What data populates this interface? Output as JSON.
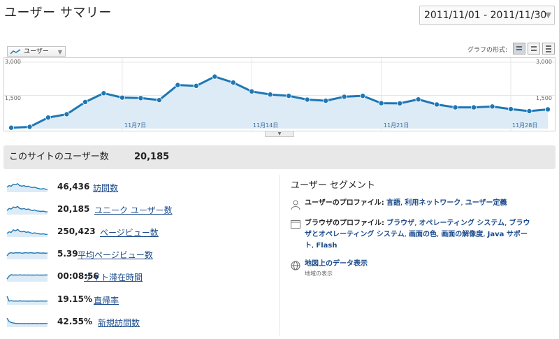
{
  "page": {
    "title": "ユーザー サマリー",
    "date_range": "2011/11/01 - 2011/11/30"
  },
  "graph": {
    "metric_select_label": "ユーザー",
    "format_label": "グラフの形式:",
    "format_buttons": [
      "line-chart-icon",
      "motion-chart-icon",
      "table-icon"
    ],
    "y_left": [
      "3,000",
      "1,500"
    ],
    "y_right": [
      "3,000",
      "1,500"
    ],
    "x_labels": [
      "11月7日",
      "11月14日",
      "11月21日",
      "11月28日"
    ]
  },
  "chart_data": {
    "type": "area",
    "title": "",
    "xlabel": "",
    "ylabel": "",
    "ylim": [
      0,
      3000
    ],
    "x": [
      "11/1",
      "11/2",
      "11/3",
      "11/4",
      "11/5",
      "11/6",
      "11/7",
      "11/8",
      "11/9",
      "11/10",
      "11/11",
      "11/12",
      "11/13",
      "11/14",
      "11/15",
      "11/16",
      "11/17",
      "11/18",
      "11/19",
      "11/20",
      "11/21",
      "11/22",
      "11/23",
      "11/24",
      "11/25",
      "11/26",
      "11/27",
      "11/28",
      "11/29",
      "11/30"
    ],
    "series": [
      {
        "name": "ユーザー",
        "values": [
          40,
          80,
          500,
          650,
          1200,
          1600,
          1400,
          1380,
          1290,
          1970,
          1930,
          2350,
          2080,
          1680,
          1540,
          1480,
          1310,
          1260,
          1440,
          1480,
          1150,
          1140,
          1320,
          1090,
          960,
          960,
          1000,
          880,
          790,
          870
        ]
      }
    ],
    "grid": true,
    "fill_color": "#dcebf6",
    "line_color": "#1e77b4"
  },
  "summary": {
    "label": "このサイトのユーザー数",
    "value": "20,185"
  },
  "metrics": [
    {
      "value": "46,436",
      "label": "訪問数",
      "spark": [
        0.45,
        0.6,
        0.55,
        0.75,
        0.7,
        0.8,
        0.6,
        0.55,
        0.6,
        0.5,
        0.55,
        0.45,
        0.4,
        0.45,
        0.35,
        0.3,
        0.25,
        0.3,
        0.25,
        0.2
      ]
    },
    {
      "value": "20,185",
      "label": "ユニーク ユーザー数",
      "spark": [
        0.35,
        0.55,
        0.5,
        0.7,
        0.65,
        0.75,
        0.55,
        0.5,
        0.55,
        0.45,
        0.5,
        0.4,
        0.35,
        0.4,
        0.3,
        0.28,
        0.25,
        0.28,
        0.22,
        0.2
      ]
    },
    {
      "value": "250,423",
      "label": "ページビュー数",
      "spark": [
        0.3,
        0.45,
        0.4,
        0.65,
        0.55,
        0.7,
        0.5,
        0.45,
        0.5,
        0.4,
        0.45,
        0.35,
        0.3,
        0.35,
        0.28,
        0.25,
        0.22,
        0.25,
        0.2,
        0.18
      ]
    },
    {
      "value": "5.39",
      "label": "平均ページビュー数",
      "spark": [
        0.3,
        0.55,
        0.6,
        0.55,
        0.6,
        0.58,
        0.6,
        0.55,
        0.58,
        0.6,
        0.57,
        0.6,
        0.58,
        0.55,
        0.6,
        0.58,
        0.56,
        0.58,
        0.55,
        0.57
      ]
    },
    {
      "value": "00:08:56",
      "label": "サイト滞在時間",
      "spark": [
        0.2,
        0.5,
        0.65,
        0.6,
        0.62,
        0.6,
        0.63,
        0.6,
        0.62,
        0.6,
        0.62,
        0.6,
        0.61,
        0.6,
        0.62,
        0.6,
        0.61,
        0.6,
        0.62,
        0.61
      ]
    },
    {
      "value": "19.15%",
      "label": "直帰率",
      "spark": [
        0.8,
        0.3,
        0.35,
        0.3,
        0.32,
        0.3,
        0.33,
        0.3,
        0.32,
        0.3,
        0.31,
        0.3,
        0.32,
        0.3,
        0.31,
        0.3,
        0.32,
        0.31,
        0.3,
        0.32
      ]
    },
    {
      "value": "42.55%",
      "label": "新規訪問数",
      "spark": [
        0.85,
        0.5,
        0.4,
        0.35,
        0.32,
        0.3,
        0.3,
        0.28,
        0.3,
        0.28,
        0.3,
        0.28,
        0.3,
        0.29,
        0.3,
        0.28,
        0.3,
        0.29,
        0.3,
        0.3
      ]
    }
  ],
  "segments": {
    "title": "ユーザー セグメント",
    "profile": {
      "head": "ユーザーのプロファイル:",
      "links": [
        "言語",
        "利用ネットワーク",
        "ユーザー定義"
      ]
    },
    "browser": {
      "head": "ブラウザのプロファイル:",
      "links": [
        "ブラウザ",
        "オペレーティング システム",
        "ブラウザとオペレーティング システム",
        "画面の色",
        "画面の解像度",
        "Java サポート",
        "Flash"
      ]
    },
    "map": {
      "link": "地図上のデータ表示",
      "sub": "地域の表示"
    }
  }
}
